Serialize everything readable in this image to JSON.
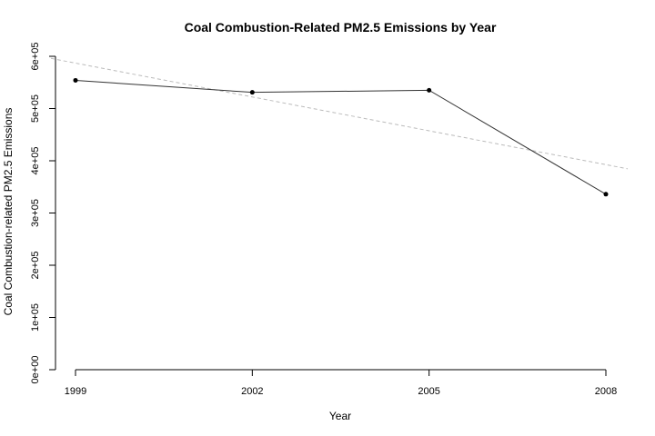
{
  "chart_data": {
    "type": "line",
    "title": "Coal Combustion-Related PM2.5 Emissions by Year",
    "xlabel": "Year",
    "ylabel": "Coal Combustion-related PM2.5 Emissions",
    "x": [
      1999,
      2002,
      2005,
      2008
    ],
    "x_tick_labels": [
      "1999",
      "2002",
      "2005",
      "2008"
    ],
    "series": [
      {
        "values": [
          554000,
          531000,
          535000,
          336000
        ],
        "color": "#333333"
      }
    ],
    "trend_line": {
      "style": "dashed",
      "color": "#bbbbbb",
      "y_at_1999": 587000,
      "slope_per_year": -21600
    },
    "ylim": [
      0,
      600000
    ],
    "y_ticks": [
      0,
      100000,
      200000,
      300000,
      400000,
      500000,
      600000
    ],
    "y_tick_labels": [
      "0e+00",
      "1e+05",
      "2e+05",
      "3e+05",
      "4e+05",
      "5e+05",
      "6e+05"
    ],
    "grid": false,
    "legend": "none"
  }
}
